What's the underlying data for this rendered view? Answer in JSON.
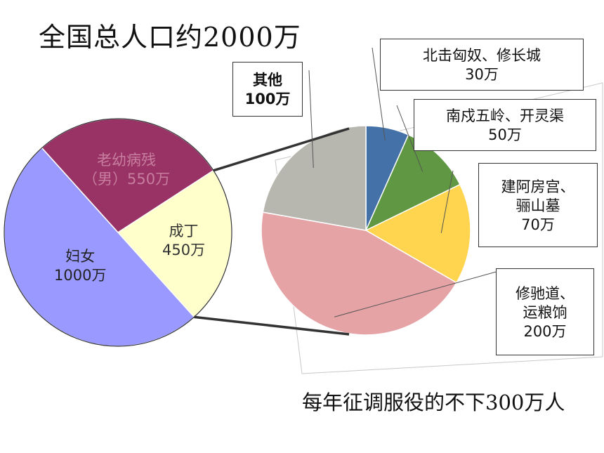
{
  "title": "全国总人口约2000万",
  "footer": "每年征调服役的不下300万人",
  "chart_data": [
    {
      "type": "pie",
      "title": "",
      "slices": [
        {
          "label": [
            "老幼病残",
            "（男）550万"
          ],
          "value": 550,
          "color": "#993366"
        },
        {
          "label": [
            "成丁",
            "450万"
          ],
          "value": 450,
          "color": "#ffffcc"
        },
        {
          "label": [
            "妇女",
            "1000万"
          ],
          "value": 1000,
          "color": "#9999ff"
        }
      ]
    },
    {
      "type": "pie",
      "title": "",
      "slices": [
        {
          "label": [
            "北击匈奴、修长城",
            "30万"
          ],
          "value": 30,
          "color": "#4472a8"
        },
        {
          "label": [
            "南戍五岭、开灵渠",
            "50万"
          ],
          "value": 50,
          "color": "#5f9743"
        },
        {
          "label": [
            "建阿房宫、",
            "骊山墓",
            "70万"
          ],
          "value": 70,
          "color": "#ffd54f"
        },
        {
          "label": [
            "修驰道、",
            "运粮饷",
            "200万"
          ],
          "value": 200,
          "color": "#e6a3a6"
        },
        {
          "label": [
            "其他",
            "100万"
          ],
          "value": 100,
          "color": "#b7b7af"
        }
      ]
    }
  ]
}
